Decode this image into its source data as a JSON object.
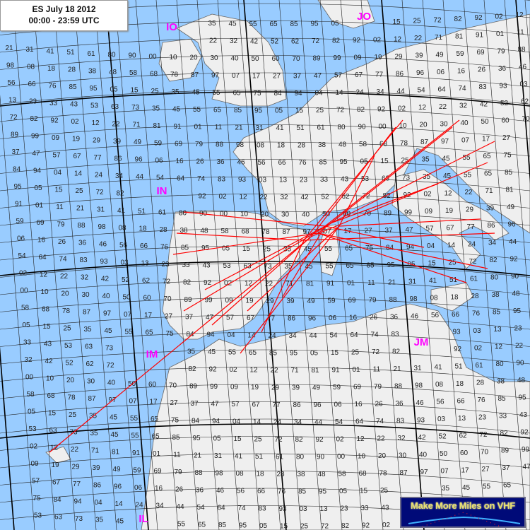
{
  "title": {
    "line1": "ES July  18 2012",
    "line2": "00:00 - 23:59  UTC"
  },
  "logo": {
    "text": "Make More Miles on VHF"
  },
  "fields": [
    "IO",
    "IN",
    "IM",
    "IL",
    "JM",
    "JO"
  ],
  "squares": [
    "35",
    "45",
    "55",
    "65",
    "85",
    "95",
    "05",
    "15",
    "25",
    "72",
    "82",
    "92",
    "02",
    "12",
    "22",
    "32",
    "42",
    "52",
    "62",
    "72",
    "82",
    "92",
    "02",
    "12",
    "22",
    "71",
    "81",
    "91",
    "01",
    "11",
    "21",
    "31",
    "41",
    "51",
    "61",
    "80",
    "90",
    "00",
    "10",
    "20",
    "30",
    "40",
    "50",
    "60",
    "70",
    "89",
    "99",
    "09",
    "19",
    "29",
    "39",
    "49",
    "59",
    "69",
    "79",
    "88",
    "98",
    "08",
    "18",
    "28",
    "38",
    "48",
    "58",
    "68",
    "78",
    "87",
    "97",
    "07",
    "17",
    "27",
    "37",
    "47",
    "57",
    "67",
    "77",
    "86",
    "96",
    "06",
    "16",
    "26",
    "36",
    "46",
    "56",
    "66",
    "76",
    "85",
    "95",
    "05",
    "15",
    "25",
    "35",
    "45",
    "55",
    "65",
    "75",
    "84",
    "94",
    "04",
    "14",
    "24",
    "34",
    "44",
    "54",
    "64",
    "74",
    "83",
    "93",
    "03",
    "13",
    "23",
    "33",
    "43",
    "53",
    "63",
    "73"
  ],
  "colors": {
    "sea": "#99ccff",
    "land": "#efefef",
    "grid": "#000000",
    "paths": "#ff0000",
    "field_label": "#ff00ff"
  }
}
